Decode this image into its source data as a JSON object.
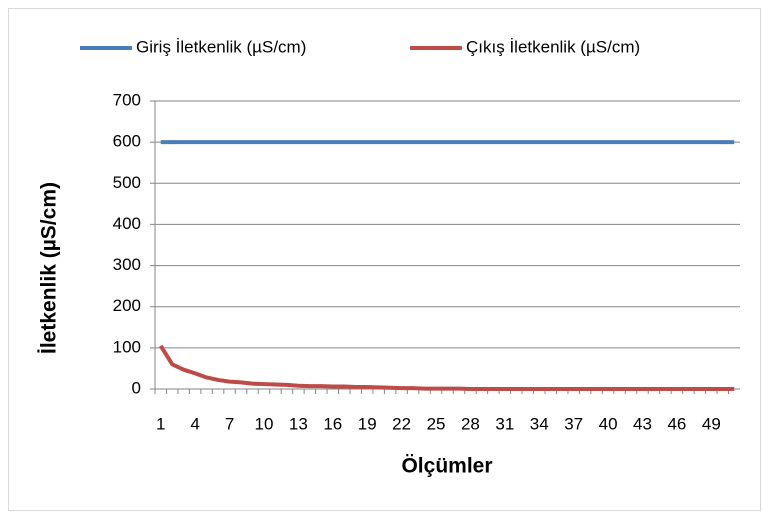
{
  "chart_data": {
    "type": "line",
    "y_label": "İletkenlik (µS/cm)",
    "x_label": "Ölçümler",
    "categories": [
      1,
      null,
      null,
      4,
      null,
      null,
      7,
      null,
      null,
      10,
      null,
      null,
      13,
      null,
      null,
      16,
      null,
      null,
      19,
      null,
      null,
      22,
      null,
      null,
      25,
      null,
      null,
      28,
      null,
      null,
      31,
      null,
      null,
      34,
      null,
      null,
      37,
      null,
      null,
      40,
      null,
      null,
      43,
      null,
      null,
      46,
      null,
      null,
      49,
      null,
      null
    ],
    "series": [
      {
        "name": "Giriş İletkenlik (µS/cm)",
        "color": "#4a7ebb",
        "values": [
          600,
          600,
          600,
          600,
          600,
          600,
          600,
          600,
          600,
          600,
          600,
          600,
          600,
          600,
          600,
          600,
          600,
          600,
          600,
          600,
          600,
          600,
          600,
          600,
          600,
          600,
          600,
          600,
          600,
          600,
          600,
          600,
          600,
          600,
          600,
          600,
          600,
          600,
          600,
          600,
          600,
          600,
          600,
          600,
          600,
          600,
          600,
          600,
          600,
          600,
          600
        ]
      },
      {
        "name": "Çıkış İletkenlik (µS/cm)",
        "color": "#be4b48",
        "values": [
          105,
          60,
          47,
          38,
          28,
          22,
          18,
          16,
          13,
          12,
          11,
          10,
          8,
          7,
          7,
          6,
          6,
          5,
          5,
          4,
          3,
          2,
          2,
          1,
          1,
          1,
          1,
          0,
          0,
          0,
          0,
          0,
          0,
          0,
          0,
          0,
          0,
          0,
          0,
          0,
          0,
          0,
          0,
          0,
          0,
          0,
          0,
          0,
          0,
          0,
          0
        ]
      }
    ],
    "ylim": [
      0,
      700
    ],
    "yticks": [
      0,
      100,
      200,
      300,
      400,
      500,
      600,
      700
    ],
    "grid": true,
    "legend": "top"
  }
}
